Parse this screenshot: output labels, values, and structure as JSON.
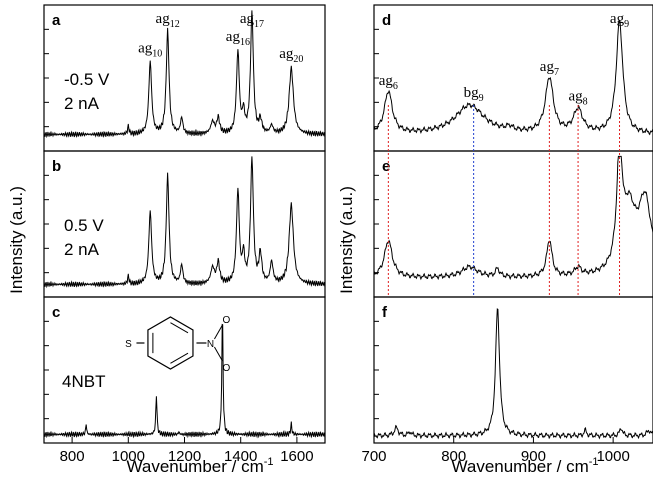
{
  "chart_data": [
    {
      "type": "line",
      "group": "left",
      "panel_letter": "a",
      "xlim": [
        700,
        1700
      ],
      "ylim": [
        0,
        1
      ],
      "annotations": [
        "-0.5 V",
        "2 nA"
      ],
      "peak_labels": [
        {
          "base": "ag",
          "sub": "10",
          "x": 1078
        },
        {
          "base": "ag",
          "sub": "12",
          "x": 1140
        },
        {
          "base": "ag",
          "sub": "16",
          "x": 1390
        },
        {
          "base": "ag",
          "sub": "17",
          "x": 1440
        },
        {
          "base": "ag",
          "sub": "20",
          "x": 1580
        }
      ],
      "peaks": [
        [
          1000,
          0.06,
          3
        ],
        [
          1078,
          0.55,
          6
        ],
        [
          1140,
          0.78,
          6
        ],
        [
          1190,
          0.12,
          5
        ],
        [
          1300,
          0.09,
          8
        ],
        [
          1320,
          0.12,
          6
        ],
        [
          1390,
          0.62,
          6
        ],
        [
          1410,
          0.15,
          5
        ],
        [
          1440,
          0.92,
          6
        ],
        [
          1470,
          0.1,
          6
        ],
        [
          1510,
          0.06,
          6
        ],
        [
          1580,
          0.5,
          9
        ]
      ],
      "baseline": 0.08
    },
    {
      "type": "line",
      "group": "left",
      "panel_letter": "b",
      "xlim": [
        700,
        1700
      ],
      "ylim": [
        0,
        1
      ],
      "annotations": [
        "0.5 V",
        "2 nA"
      ],
      "peaks": [
        [
          1000,
          0.06,
          3
        ],
        [
          1078,
          0.55,
          6
        ],
        [
          1140,
          0.82,
          6
        ],
        [
          1190,
          0.14,
          5
        ],
        [
          1300,
          0.12,
          8
        ],
        [
          1320,
          0.16,
          6
        ],
        [
          1390,
          0.7,
          6
        ],
        [
          1410,
          0.2,
          5
        ],
        [
          1440,
          0.95,
          6
        ],
        [
          1470,
          0.22,
          6
        ],
        [
          1510,
          0.16,
          6
        ],
        [
          1580,
          0.6,
          9
        ]
      ],
      "baseline": 0.05
    },
    {
      "type": "line",
      "group": "left",
      "panel_letter": "c",
      "xlim": [
        700,
        1700
      ],
      "ylim": [
        0,
        1
      ],
      "annotations": [
        "4NBT"
      ],
      "molecule_labels": [
        "S",
        "N",
        "O",
        "O"
      ],
      "peaks": [
        [
          850,
          0.08,
          2
        ],
        [
          1100,
          0.3,
          2.5
        ],
        [
          1180,
          0.02,
          2
        ],
        [
          1335,
          0.95,
          2.5
        ],
        [
          1580,
          0.08,
          2.5
        ]
      ],
      "baseline": 0.02
    },
    {
      "type": "line",
      "group": "right",
      "panel_letter": "d",
      "xlim": [
        700,
        1050
      ],
      "ylim": [
        0,
        1
      ],
      "peak_labels": [
        {
          "base": "ag",
          "sub": "6",
          "x": 718
        },
        {
          "base": "bg",
          "sub": "9",
          "x": 825
        },
        {
          "base": "ag",
          "sub": "7",
          "x": 920
        },
        {
          "base": "ag",
          "sub": "8",
          "x": 956
        },
        {
          "base": "ag",
          "sub": "9",
          "x": 1008
        }
      ],
      "peaks": [
        [
          718,
          0.32,
          6
        ],
        [
          820,
          0.22,
          22
        ],
        [
          870,
          0.03,
          5
        ],
        [
          920,
          0.42,
          6
        ],
        [
          956,
          0.18,
          7
        ],
        [
          1008,
          0.85,
          5
        ]
      ],
      "baseline": 0.08
    },
    {
      "type": "line",
      "group": "right",
      "panel_letter": "e",
      "xlim": [
        700,
        1050
      ],
      "ylim": [
        0,
        1
      ],
      "peaks": [
        [
          718,
          0.28,
          6
        ],
        [
          820,
          0.08,
          12
        ],
        [
          855,
          0.06,
          3
        ],
        [
          920,
          0.28,
          4
        ],
        [
          956,
          0.06,
          5
        ],
        [
          1008,
          0.85,
          4
        ],
        [
          1020,
          0.45,
          10
        ],
        [
          1040,
          0.55,
          10
        ]
      ],
      "baseline": 0.1
    },
    {
      "type": "line",
      "group": "right",
      "panel_letter": "f",
      "xlim": [
        700,
        1050
      ],
      "ylim": [
        0,
        1
      ],
      "peaks": [
        [
          728,
          0.06,
          3
        ],
        [
          745,
          0.03,
          2
        ],
        [
          855,
          0.97,
          3
        ],
        [
          965,
          0.04,
          2
        ],
        [
          1010,
          0.06,
          2
        ],
        [
          1045,
          0.04,
          3
        ]
      ],
      "baseline": 0.01
    }
  ],
  "axes": {
    "left_xlabel": "Wavenumber / cm",
    "right_xlabel": "Wavenumber / cm",
    "xlabel_superscript": "-1",
    "ylabel": "Intensity (a.u.)",
    "left_ticks": [
      "800",
      "1000",
      "1200",
      "1400",
      "1600"
    ],
    "left_tick_values": [
      800,
      1000,
      1200,
      1400,
      1600
    ],
    "right_ticks": [
      "700",
      "800",
      "900",
      "1000"
    ],
    "right_tick_values": [
      700,
      800,
      900,
      1000
    ]
  },
  "guide_lines": [
    {
      "x": 718,
      "color": "#e02020"
    },
    {
      "x": 825,
      "color": "#2040d0"
    },
    {
      "x": 920,
      "color": "#e02020"
    },
    {
      "x": 956,
      "color": "#e02020"
    },
    {
      "x": 1008,
      "color": "#e02020"
    }
  ]
}
